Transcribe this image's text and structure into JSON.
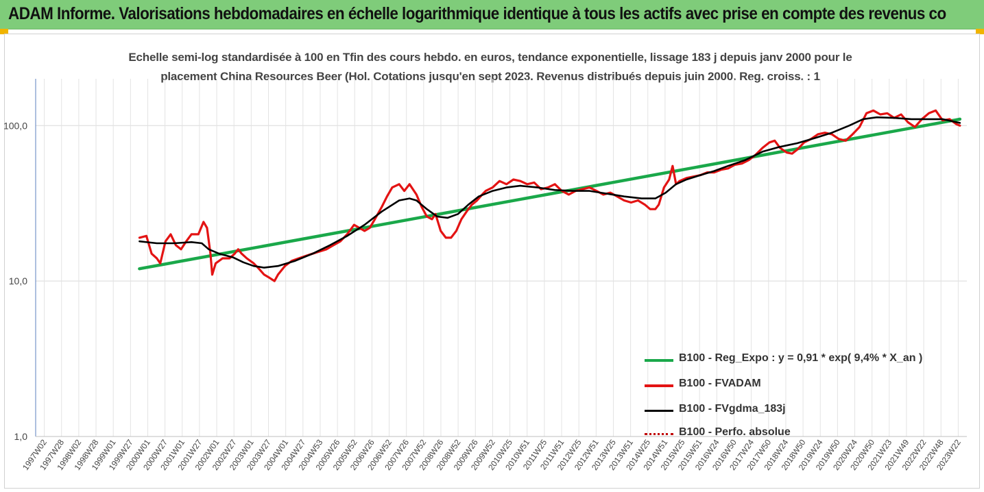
{
  "banner": {
    "title": "ADAM Informe. Valorisations hebdomadaires en échelle logarithmique identique à tous les actifs avec prise en compte des revenus co"
  },
  "colors": {
    "banner_bg": "#7fcc7a",
    "reg": "#1aa84a",
    "fvadam": "#e31313",
    "fvgdma": "#000000",
    "perfo": "#c00000"
  },
  "chart_data": {
    "type": "line",
    "title_line1": "Echelle semi-log standardisée à 100 en Tfin des cours hebdo. en euros, tendance exponentielle, lissage 183 j depuis janv 2000 pour le",
    "title_line2": "placement China Resources Beer (Hol. Cotations jusqu'en sept 2023. Revenus distribués depuis juin 2000. Reg. croiss. : 1",
    "y_scale": "log",
    "ylim": [
      1,
      200
    ],
    "grid": true,
    "legend_position": "bottom-right",
    "y_ticks": [
      {
        "value": 1,
        "label": "1,0"
      },
      {
        "value": 10,
        "label": "10,0"
      },
      {
        "value": 100,
        "label": "100,0"
      }
    ],
    "x_range": [
      1997.0,
      2023.9
    ],
    "x_ticks": [
      "1997W02",
      "1997W28",
      "1998W02",
      "1998W28",
      "1999W01",
      "1999W27",
      "2000W01",
      "2000W27",
      "2001W01",
      "2001W27",
      "2002W01",
      "2002W27",
      "2003W01",
      "2003W27",
      "2004W01",
      "2004W27",
      "2004W53",
      "2005W26",
      "2005W52",
      "2006W26",
      "2006W52",
      "2007W26",
      "2007W52",
      "2008W26",
      "2008W52",
      "2009W26",
      "2009W52",
      "2010W25",
      "2010W51",
      "2011W25",
      "2011W51",
      "2012W25",
      "2012W51",
      "2013W25",
      "2013W51",
      "2014W25",
      "2014W51",
      "2015W25",
      "2015W51",
      "2016W24",
      "2016W50",
      "2017W24",
      "2017W50",
      "2018W24",
      "2018W50",
      "2019W24",
      "2019W50",
      "2020W24",
      "2020W50",
      "2021W23",
      "2021W49",
      "2022W22",
      "2022W48",
      "2023W22"
    ],
    "series": [
      {
        "name": "B100 - Reg_Expo : y = 0,91 * exp( 9,4% *  X_an )",
        "style": "solid-thick",
        "points": [
          [
            2000.0,
            12.0
          ],
          [
            2023.7,
            110.0
          ]
        ]
      },
      {
        "name": "B100 - FVADAM",
        "style": "solid",
        "points": [
          [
            2000.0,
            19
          ],
          [
            2000.2,
            19.5
          ],
          [
            2000.35,
            15
          ],
          [
            2000.5,
            14
          ],
          [
            2000.6,
            13
          ],
          [
            2000.75,
            18
          ],
          [
            2000.9,
            20
          ],
          [
            2001.05,
            17
          ],
          [
            2001.2,
            16
          ],
          [
            2001.35,
            18
          ],
          [
            2001.5,
            20
          ],
          [
            2001.7,
            20
          ],
          [
            2001.85,
            24
          ],
          [
            2001.95,
            22
          ],
          [
            2002.05,
            15
          ],
          [
            2002.1,
            11
          ],
          [
            2002.2,
            13
          ],
          [
            2002.4,
            14
          ],
          [
            2002.6,
            14
          ],
          [
            2002.75,
            15
          ],
          [
            2002.85,
            16
          ],
          [
            2002.95,
            15
          ],
          [
            2003.1,
            14
          ],
          [
            2003.3,
            13
          ],
          [
            2003.45,
            12
          ],
          [
            2003.6,
            11
          ],
          [
            2003.75,
            10.5
          ],
          [
            2003.9,
            10
          ],
          [
            2004.0,
            11
          ],
          [
            2004.2,
            12.5
          ],
          [
            2004.4,
            13.5
          ],
          [
            2004.6,
            14
          ],
          [
            2004.8,
            14.5
          ],
          [
            2005.0,
            15
          ],
          [
            2005.2,
            15.5
          ],
          [
            2005.4,
            16
          ],
          [
            2005.6,
            17
          ],
          [
            2005.8,
            18
          ],
          [
            2006.0,
            20
          ],
          [
            2006.2,
            23
          ],
          [
            2006.35,
            22
          ],
          [
            2006.5,
            21
          ],
          [
            2006.65,
            22
          ],
          [
            2006.8,
            25
          ],
          [
            2007.0,
            30
          ],
          [
            2007.15,
            35
          ],
          [
            2007.3,
            40
          ],
          [
            2007.5,
            42
          ],
          [
            2007.65,
            38
          ],
          [
            2007.8,
            42
          ],
          [
            2008.0,
            36
          ],
          [
            2008.15,
            30
          ],
          [
            2008.3,
            26
          ],
          [
            2008.45,
            25
          ],
          [
            2008.55,
            27
          ],
          [
            2008.7,
            21
          ],
          [
            2008.85,
            19
          ],
          [
            2009.0,
            19
          ],
          [
            2009.15,
            21
          ],
          [
            2009.3,
            25
          ],
          [
            2009.45,
            28
          ],
          [
            2009.6,
            31
          ],
          [
            2009.75,
            33
          ],
          [
            2009.9,
            36
          ],
          [
            2010.0,
            38
          ],
          [
            2010.2,
            40
          ],
          [
            2010.4,
            44
          ],
          [
            2010.6,
            42
          ],
          [
            2010.8,
            45
          ],
          [
            2011.0,
            44
          ],
          [
            2011.2,
            42
          ],
          [
            2011.4,
            43
          ],
          [
            2011.6,
            39
          ],
          [
            2011.8,
            40
          ],
          [
            2012.0,
            42
          ],
          [
            2012.2,
            38
          ],
          [
            2012.4,
            36
          ],
          [
            2012.6,
            38
          ],
          [
            2012.8,
            39
          ],
          [
            2013.0,
            40
          ],
          [
            2013.2,
            38
          ],
          [
            2013.4,
            36
          ],
          [
            2013.6,
            37
          ],
          [
            2013.8,
            35
          ],
          [
            2014.0,
            33
          ],
          [
            2014.2,
            32
          ],
          [
            2014.4,
            33
          ],
          [
            2014.6,
            31
          ],
          [
            2014.75,
            29
          ],
          [
            2014.9,
            29
          ],
          [
            2015.0,
            31
          ],
          [
            2015.15,
            40
          ],
          [
            2015.3,
            45
          ],
          [
            2015.4,
            55
          ],
          [
            2015.5,
            42
          ],
          [
            2015.6,
            44
          ],
          [
            2015.8,
            46
          ],
          [
            2016.0,
            47
          ],
          [
            2016.2,
            48
          ],
          [
            2016.4,
            50
          ],
          [
            2016.6,
            50
          ],
          [
            2016.8,
            52
          ],
          [
            2017.0,
            53
          ],
          [
            2017.2,
            56
          ],
          [
            2017.4,
            57
          ],
          [
            2017.6,
            60
          ],
          [
            2017.8,
            65
          ],
          [
            2018.0,
            72
          ],
          [
            2018.2,
            78
          ],
          [
            2018.35,
            80
          ],
          [
            2018.5,
            72
          ],
          [
            2018.7,
            67
          ],
          [
            2018.85,
            66
          ],
          [
            2019.0,
            70
          ],
          [
            2019.2,
            78
          ],
          [
            2019.4,
            82
          ],
          [
            2019.6,
            88
          ],
          [
            2019.8,
            90
          ],
          [
            2020.0,
            88
          ],
          [
            2020.2,
            82
          ],
          [
            2020.4,
            80
          ],
          [
            2020.6,
            88
          ],
          [
            2020.8,
            98
          ],
          [
            2021.0,
            120
          ],
          [
            2021.2,
            125
          ],
          [
            2021.4,
            118
          ],
          [
            2021.6,
            120
          ],
          [
            2021.8,
            112
          ],
          [
            2022.0,
            118
          ],
          [
            2022.2,
            105
          ],
          [
            2022.4,
            98
          ],
          [
            2022.6,
            110
          ],
          [
            2022.8,
            120
          ],
          [
            2023.0,
            125
          ],
          [
            2023.2,
            108
          ],
          [
            2023.4,
            110
          ],
          [
            2023.6,
            102
          ],
          [
            2023.7,
            100
          ]
        ]
      },
      {
        "name": "B100 - FVgdma_183j",
        "style": "solid",
        "points": [
          [
            2000.0,
            18
          ],
          [
            2000.5,
            17.5
          ],
          [
            2001.0,
            17.5
          ],
          [
            2001.5,
            17.8
          ],
          [
            2001.8,
            17.5
          ],
          [
            2002.0,
            16
          ],
          [
            2002.3,
            15
          ],
          [
            2002.7,
            14.2
          ],
          [
            2003.0,
            13.2
          ],
          [
            2003.3,
            12.5
          ],
          [
            2003.6,
            12.2
          ],
          [
            2004.0,
            12.5
          ],
          [
            2004.5,
            13.5
          ],
          [
            2005.0,
            15
          ],
          [
            2005.5,
            17
          ],
          [
            2006.0,
            19.5
          ],
          [
            2006.5,
            23
          ],
          [
            2007.0,
            28
          ],
          [
            2007.5,
            33
          ],
          [
            2007.8,
            34
          ],
          [
            2008.0,
            33
          ],
          [
            2008.3,
            29
          ],
          [
            2008.6,
            26
          ],
          [
            2008.9,
            25.5
          ],
          [
            2009.2,
            27
          ],
          [
            2009.5,
            31
          ],
          [
            2009.8,
            35
          ],
          [
            2010.2,
            38
          ],
          [
            2010.6,
            40
          ],
          [
            2011.0,
            41
          ],
          [
            2011.5,
            40
          ],
          [
            2012.0,
            38.5
          ],
          [
            2012.5,
            38
          ],
          [
            2013.0,
            38
          ],
          [
            2013.5,
            36.5
          ],
          [
            2014.0,
            35
          ],
          [
            2014.5,
            34
          ],
          [
            2014.9,
            34
          ],
          [
            2015.2,
            37
          ],
          [
            2015.5,
            42
          ],
          [
            2015.8,
            45
          ],
          [
            2016.2,
            48
          ],
          [
            2016.6,
            51
          ],
          [
            2017.0,
            55
          ],
          [
            2017.5,
            60
          ],
          [
            2018.0,
            68
          ],
          [
            2018.5,
            73
          ],
          [
            2019.0,
            77
          ],
          [
            2019.5,
            83
          ],
          [
            2020.0,
            90
          ],
          [
            2020.5,
            100
          ],
          [
            2020.9,
            110
          ],
          [
            2021.3,
            113
          ],
          [
            2021.8,
            112
          ],
          [
            2022.3,
            110
          ],
          [
            2022.8,
            110
          ],
          [
            2023.2,
            110
          ],
          [
            2023.7,
            104
          ]
        ]
      },
      {
        "name": "B100 - Perfo. absolue",
        "style": "dotted",
        "points": []
      }
    ]
  }
}
